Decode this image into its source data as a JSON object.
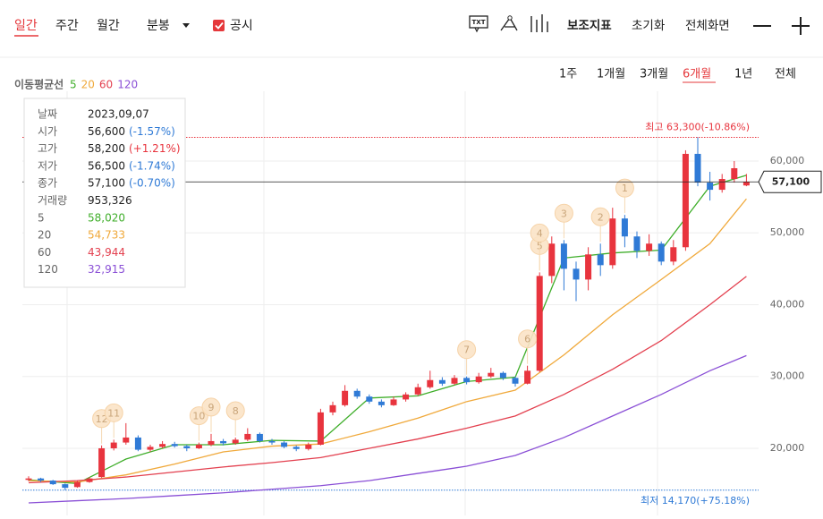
{
  "toolbar": {
    "tabs": [
      "일간",
      "주간",
      "월간",
      "분봉"
    ],
    "checkbox": "공시",
    "icon_label": "TXT",
    "buttons": [
      "보조지표",
      "초기화",
      "전체화면"
    ],
    "periods": [
      "1주",
      "1개월",
      "3개월",
      "6개월",
      "1년",
      "전체"
    ]
  },
  "legend": {
    "title": "이동평균선",
    "items": [
      "5",
      "20",
      "60",
      "120"
    ]
  },
  "tooltip": {
    "rows": [
      {
        "label": "날짜",
        "value": "2023,09,07"
      },
      {
        "label": "시가",
        "value": "56,600",
        "change": "(-1.57%)"
      },
      {
        "label": "고가",
        "value": "58,200",
        "change": "(+1.21%)"
      },
      {
        "label": "저가",
        "value": "56,500",
        "change": "(-1.74%)"
      },
      {
        "label": "종가",
        "value": "57,100",
        "change": "(-0.70%)"
      },
      {
        "label": "거래량",
        "value": "953,326"
      },
      {
        "label": "5",
        "value": "58,020"
      },
      {
        "label": "20",
        "value": "54,733"
      },
      {
        "label": "60",
        "value": "43,944"
      },
      {
        "label": "120",
        "value": "32,915"
      }
    ]
  },
  "chart_data": {
    "type": "candlestick",
    "up_color": "#e8343e",
    "down_color": "#2f7ad6",
    "ylim": [
      11400,
      68720
    ],
    "yticks": [
      {
        "value": 60000,
        "label": "60,000"
      },
      {
        "value": 50000,
        "label": "50,000"
      },
      {
        "value": 40000,
        "label": "40,000"
      },
      {
        "value": 30000,
        "label": "30,000"
      },
      {
        "value": 20000,
        "label": "20,000"
      }
    ],
    "grid": true,
    "candles": [
      [
        15600,
        16100,
        15400,
        15800
      ],
      [
        15800,
        15900,
        15300,
        15500
      ],
      [
        15500,
        15600,
        14900,
        15000
      ],
      [
        15000,
        15100,
        14170,
        14500
      ],
      [
        14600,
        15500,
        14500,
        15300
      ],
      [
        15300,
        16000,
        15200,
        15800
      ],
      [
        16000,
        20400,
        15900,
        20000
      ],
      [
        20000,
        21200,
        19700,
        20800
      ],
      [
        20800,
        23500,
        20500,
        21500
      ],
      [
        21500,
        21800,
        19600,
        19800
      ],
      [
        19800,
        20500,
        19500,
        20200
      ],
      [
        20200,
        21000,
        20000,
        20600
      ],
      [
        20600,
        20900,
        20100,
        20300
      ],
      [
        20300,
        20500,
        19600,
        20000
      ],
      [
        20000,
        20800,
        19900,
        20500
      ],
      [
        20500,
        22000,
        20300,
        21000
      ],
      [
        21000,
        21300,
        20400,
        20700
      ],
      [
        20700,
        21500,
        20500,
        21200
      ],
      [
        21200,
        22800,
        21000,
        22000
      ],
      [
        22000,
        22200,
        20800,
        21000
      ],
      [
        21000,
        21300,
        20500,
        20800
      ],
      [
        20800,
        21000,
        20000,
        20200
      ],
      [
        20200,
        20400,
        19600,
        19900
      ],
      [
        19900,
        20800,
        19700,
        20500
      ],
      [
        20500,
        25500,
        20400,
        25000
      ],
      [
        25000,
        26500,
        24600,
        26000
      ],
      [
        26000,
        28800,
        25800,
        28000
      ],
      [
        28000,
        28300,
        26900,
        27200
      ],
      [
        27200,
        27500,
        26200,
        26500
      ],
      [
        26500,
        26800,
        25700,
        26000
      ],
      [
        26000,
        27200,
        25900,
        26800
      ],
      [
        26800,
        27800,
        26500,
        27500
      ],
      [
        27500,
        29000,
        27300,
        28500
      ],
      [
        28500,
        30800,
        28300,
        29500
      ],
      [
        29500,
        29900,
        28700,
        29000
      ],
      [
        29000,
        30200,
        28800,
        29800
      ],
      [
        29800,
        30000,
        28900,
        29200
      ],
      [
        29200,
        30500,
        29000,
        30000
      ],
      [
        30000,
        31200,
        29800,
        30500
      ],
      [
        30500,
        30700,
        29500,
        29800
      ],
      [
        29800,
        30000,
        28600,
        29000
      ],
      [
        29000,
        31500,
        28900,
        30800
      ],
      [
        30800,
        44500,
        30600,
        44000
      ],
      [
        44000,
        49500,
        43000,
        48500
      ],
      [
        48500,
        49000,
        42000,
        45000
      ],
      [
        45000,
        46000,
        40500,
        43500
      ],
      [
        43500,
        48000,
        42000,
        47000
      ],
      [
        47000,
        48500,
        44000,
        45500
      ],
      [
        45500,
        53500,
        45000,
        52000
      ],
      [
        52000,
        52500,
        48000,
        49500
      ],
      [
        49500,
        50200,
        46500,
        47500
      ],
      [
        47500,
        49800,
        46800,
        48500
      ],
      [
        48500,
        48800,
        45500,
        46000
      ],
      [
        46000,
        49000,
        45500,
        48000
      ],
      [
        48000,
        61500,
        47500,
        61000
      ],
      [
        61000,
        63300,
        56500,
        57000
      ],
      [
        57000,
        58500,
        54500,
        56000
      ],
      [
        56000,
        58200,
        55600,
        57500
      ],
      [
        57500,
        60000,
        57000,
        59000
      ],
      [
        56600,
        58200,
        56500,
        57100
      ]
    ],
    "ma_x": [
      0,
      4,
      8,
      12,
      16,
      20,
      24,
      28,
      32,
      36,
      40,
      44,
      48,
      52,
      56,
      59
    ],
    "series": [
      {
        "name": "5",
        "color": "#3fae2a",
        "values": [
          15600,
          15100,
          18500,
          20500,
          20500,
          21100,
          21000,
          27000,
          27300,
          29300,
          29900,
          46500,
          47200,
          47600,
          56500,
          58020
        ]
      },
      {
        "name": "20",
        "color": "#f0a93b",
        "values": [
          15500,
          15300,
          16300,
          17800,
          19500,
          20300,
          20600,
          22300,
          24200,
          26500,
          28100,
          33000,
          38600,
          43500,
          48500,
          54733
        ]
      },
      {
        "name": "60",
        "color": "#e3404f",
        "values": [
          15200,
          15500,
          16000,
          16700,
          17400,
          18000,
          18700,
          20000,
          21300,
          22800,
          24500,
          27500,
          31000,
          35000,
          40000,
          43944
        ]
      },
      {
        "name": "120",
        "color": "#8a4fd6",
        "values": [
          12400,
          12700,
          13000,
          13400,
          13800,
          14300,
          14800,
          15500,
          16500,
          17500,
          19000,
          21500,
          24500,
          27500,
          30800,
          32915
        ]
      }
    ],
    "high": {
      "label": "최고 63,300(-10.86%)",
      "value": 63300
    },
    "low": {
      "label": "최저 14,170(+75.18%)",
      "value": 14170
    },
    "last": {
      "label": "57,100",
      "value": 57100
    },
    "events": [
      {
        "label": "12",
        "at": 6
      },
      {
        "label": "11",
        "at": 7
      },
      {
        "label": "10",
        "at": 14
      },
      {
        "label": "9",
        "at": 15
      },
      {
        "label": "8",
        "at": 17
      },
      {
        "label": "7",
        "at": 36
      },
      {
        "label": "6",
        "at": 41
      },
      {
        "label": "5",
        "at": 42
      },
      {
        "label": "4",
        "at": 42
      },
      {
        "label": "3",
        "at": 44
      },
      {
        "label": "2",
        "at": 47
      },
      {
        "label": "1",
        "at": 49
      }
    ]
  }
}
